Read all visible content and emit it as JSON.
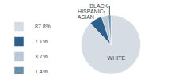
{
  "chart_data": {
    "type": "pie",
    "categories": [
      "WHITE",
      "ASIAN",
      "HISPANIC",
      "BLACK"
    ],
    "values": [
      87.8,
      7.1,
      3.7,
      1.4
    ],
    "value_labels": [
      "87.8%",
      "7.1%",
      "3.7%",
      "1.4%"
    ],
    "colors": [
      "#d6dce4",
      "#2e5f8a",
      "#b8c8d8",
      "#6a8fa8"
    ],
    "legend": "lower left"
  }
}
